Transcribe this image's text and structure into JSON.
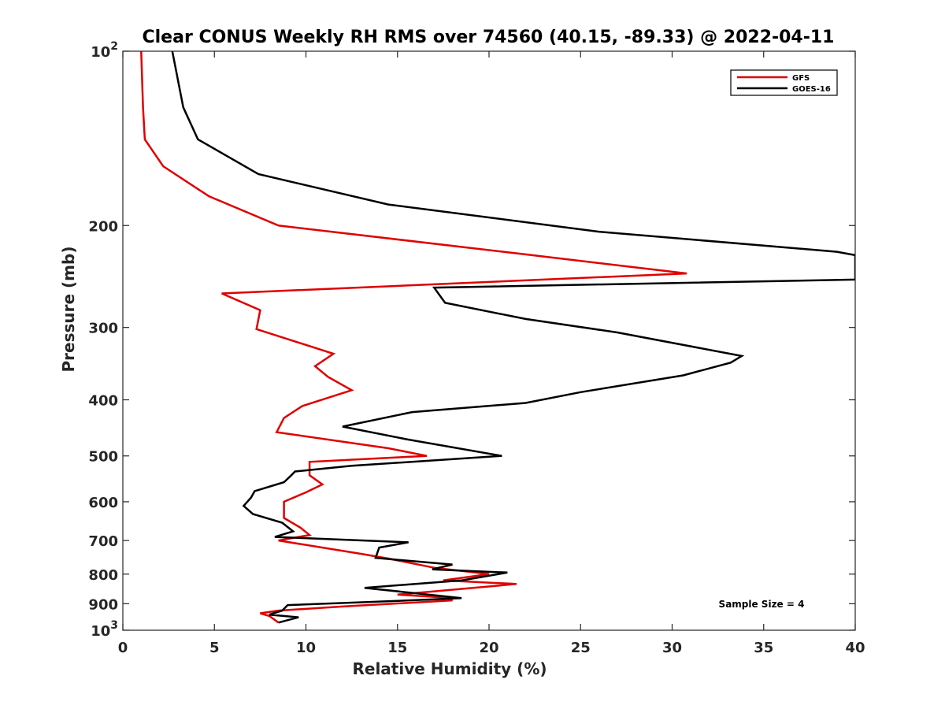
{
  "chart_data": {
    "type": "line",
    "title": "Clear CONUS Weekly RH RMS over 74560 (40.15, -89.33) @ 2022-04-11",
    "xlabel": "Relative Humidity (%)",
    "ylabel": "Pressure (mb)",
    "xlim": [
      0,
      40
    ],
    "ylim": [
      100,
      1000
    ],
    "y_scale": "log",
    "y_reversed": true,
    "x_ticks": [
      "0",
      "5",
      "10",
      "15",
      "20",
      "25",
      "30",
      "35",
      "40"
    ],
    "y_ticks": [
      {
        "value": 100,
        "label": "10",
        "sup": "2"
      },
      {
        "value": 200,
        "label": "200"
      },
      {
        "value": 300,
        "label": "300"
      },
      {
        "value": 400,
        "label": "400"
      },
      {
        "value": 500,
        "label": "500"
      },
      {
        "value": 600,
        "label": "600"
      },
      {
        "value": 700,
        "label": "700"
      },
      {
        "value": 800,
        "label": "800"
      },
      {
        "value": 900,
        "label": "900"
      },
      {
        "value": 1000,
        "label": "10",
        "sup": "3"
      }
    ],
    "grid": false,
    "legend_position": "top-right",
    "annotation": "Sample Size = 4",
    "series": [
      {
        "name": "GFS",
        "color": "#e00000",
        "points": [
          [
            1.0,
            100
          ],
          [
            1.1,
            125
          ],
          [
            1.2,
            142
          ],
          [
            2.2,
            158
          ],
          [
            4.7,
            178
          ],
          [
            8.5,
            200
          ],
          [
            21.8,
            224
          ],
          [
            30.8,
            242
          ],
          [
            5.4,
            262
          ],
          [
            7.5,
            280
          ],
          [
            7.3,
            302
          ],
          [
            11.5,
            333
          ],
          [
            10.5,
            350
          ],
          [
            11.2,
            365
          ],
          [
            12.5,
            385
          ],
          [
            9.8,
            410
          ],
          [
            8.8,
            430
          ],
          [
            8.4,
            455
          ],
          [
            14.5,
            485
          ],
          [
            16.6,
            500
          ],
          [
            10.2,
            512
          ],
          [
            10.2,
            540
          ],
          [
            10.9,
            560
          ],
          [
            10.0,
            578
          ],
          [
            8.8,
            600
          ],
          [
            8.8,
            640
          ],
          [
            9.7,
            665
          ],
          [
            10.2,
            685
          ],
          [
            8.5,
            700
          ],
          [
            13.0,
            738
          ],
          [
            14.5,
            752
          ],
          [
            17.0,
            780
          ],
          [
            20.0,
            800
          ],
          [
            17.5,
            820
          ],
          [
            21.5,
            832
          ],
          [
            15.0,
            868
          ],
          [
            17.6,
            878
          ],
          [
            18.0,
            888
          ],
          [
            12.0,
            910
          ],
          [
            8.5,
            925
          ],
          [
            7.5,
            935
          ],
          [
            8.0,
            945
          ],
          [
            8.2,
            955
          ],
          [
            8.5,
            970
          ]
        ]
      },
      {
        "name": "GOES-16",
        "color": "#000000",
        "points": [
          [
            2.7,
            100
          ],
          [
            3.3,
            125
          ],
          [
            4.1,
            142
          ],
          [
            7.4,
            163
          ],
          [
            14.5,
            184
          ],
          [
            26.0,
            205
          ],
          [
            39.0,
            222
          ],
          [
            40.0,
            225
          ],
          [
            40.0,
            248
          ],
          [
            17.0,
            256
          ],
          [
            17.6,
            272
          ],
          [
            22.0,
            290
          ],
          [
            27.0,
            306
          ],
          [
            33.8,
            336
          ],
          [
            33.2,
            345
          ],
          [
            30.6,
            363
          ],
          [
            25.0,
            388
          ],
          [
            22.0,
            405
          ],
          [
            15.8,
            420
          ],
          [
            12.0,
            445
          ],
          [
            15.5,
            468
          ],
          [
            20.7,
            500
          ],
          [
            12.5,
            520
          ],
          [
            9.4,
            532
          ],
          [
            9.2,
            540
          ],
          [
            8.8,
            555
          ],
          [
            7.2,
            575
          ],
          [
            7.0,
            590
          ],
          [
            6.6,
            610
          ],
          [
            7.1,
            630
          ],
          [
            8.7,
            652
          ],
          [
            9.3,
            675
          ],
          [
            8.3,
            690
          ],
          [
            15.6,
            705
          ],
          [
            14.0,
            720
          ],
          [
            13.8,
            750
          ],
          [
            18.0,
            770
          ],
          [
            16.9,
            785
          ],
          [
            21.0,
            795
          ],
          [
            18.5,
            820
          ],
          [
            13.2,
            845
          ],
          [
            18.5,
            880
          ],
          [
            15.0,
            890
          ],
          [
            9.0,
            905
          ],
          [
            8.7,
            925
          ],
          [
            8.0,
            940
          ],
          [
            9.6,
            950
          ],
          [
            8.5,
            970
          ]
        ]
      }
    ]
  }
}
